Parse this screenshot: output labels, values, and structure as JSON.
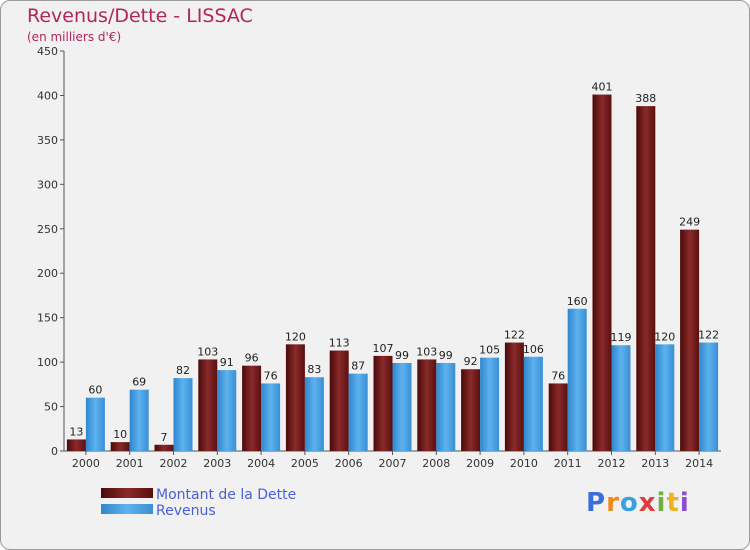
{
  "title": "Revenus/Dette - LISSAC",
  "subtitle": "(en milliers d'€)",
  "logo": {
    "letters": [
      {
        "ch": "P",
        "color": "#3a6fd8"
      },
      {
        "ch": "r",
        "color": "#f08a1e"
      },
      {
        "ch": "o",
        "color": "#3aa0e0"
      },
      {
        "ch": "x",
        "color": "#e23b3b"
      },
      {
        "ch": "i",
        "color": "#6cb43f"
      },
      {
        "ch": "t",
        "color": "#f0b31e"
      },
      {
        "ch": "i",
        "color": "#8a4fc8"
      }
    ]
  },
  "colors": {
    "dette": "#7a1a1a",
    "revenus": "#4aa3e6"
  },
  "chart_data": {
    "type": "bar",
    "categories": [
      "2000",
      "2001",
      "2002",
      "2003",
      "2004",
      "2005",
      "2006",
      "2007",
      "2008",
      "2009",
      "2010",
      "2011",
      "2012",
      "2013",
      "2014"
    ],
    "series": [
      {
        "name": "Montant de la Dette",
        "values": [
          13,
          10,
          7,
          103,
          96,
          120,
          113,
          107,
          103,
          92,
          122,
          76,
          401,
          388,
          249
        ]
      },
      {
        "name": "Revenus",
        "values": [
          60,
          69,
          82,
          91,
          76,
          83,
          87,
          99,
          99,
          105,
          106,
          160,
          119,
          120,
          122
        ]
      }
    ],
    "ylim": [
      0,
      450
    ],
    "yticks": [
      0,
      50,
      100,
      150,
      200,
      250,
      300,
      350,
      400,
      450
    ],
    "grid": false,
    "legend": "bottom-left"
  }
}
